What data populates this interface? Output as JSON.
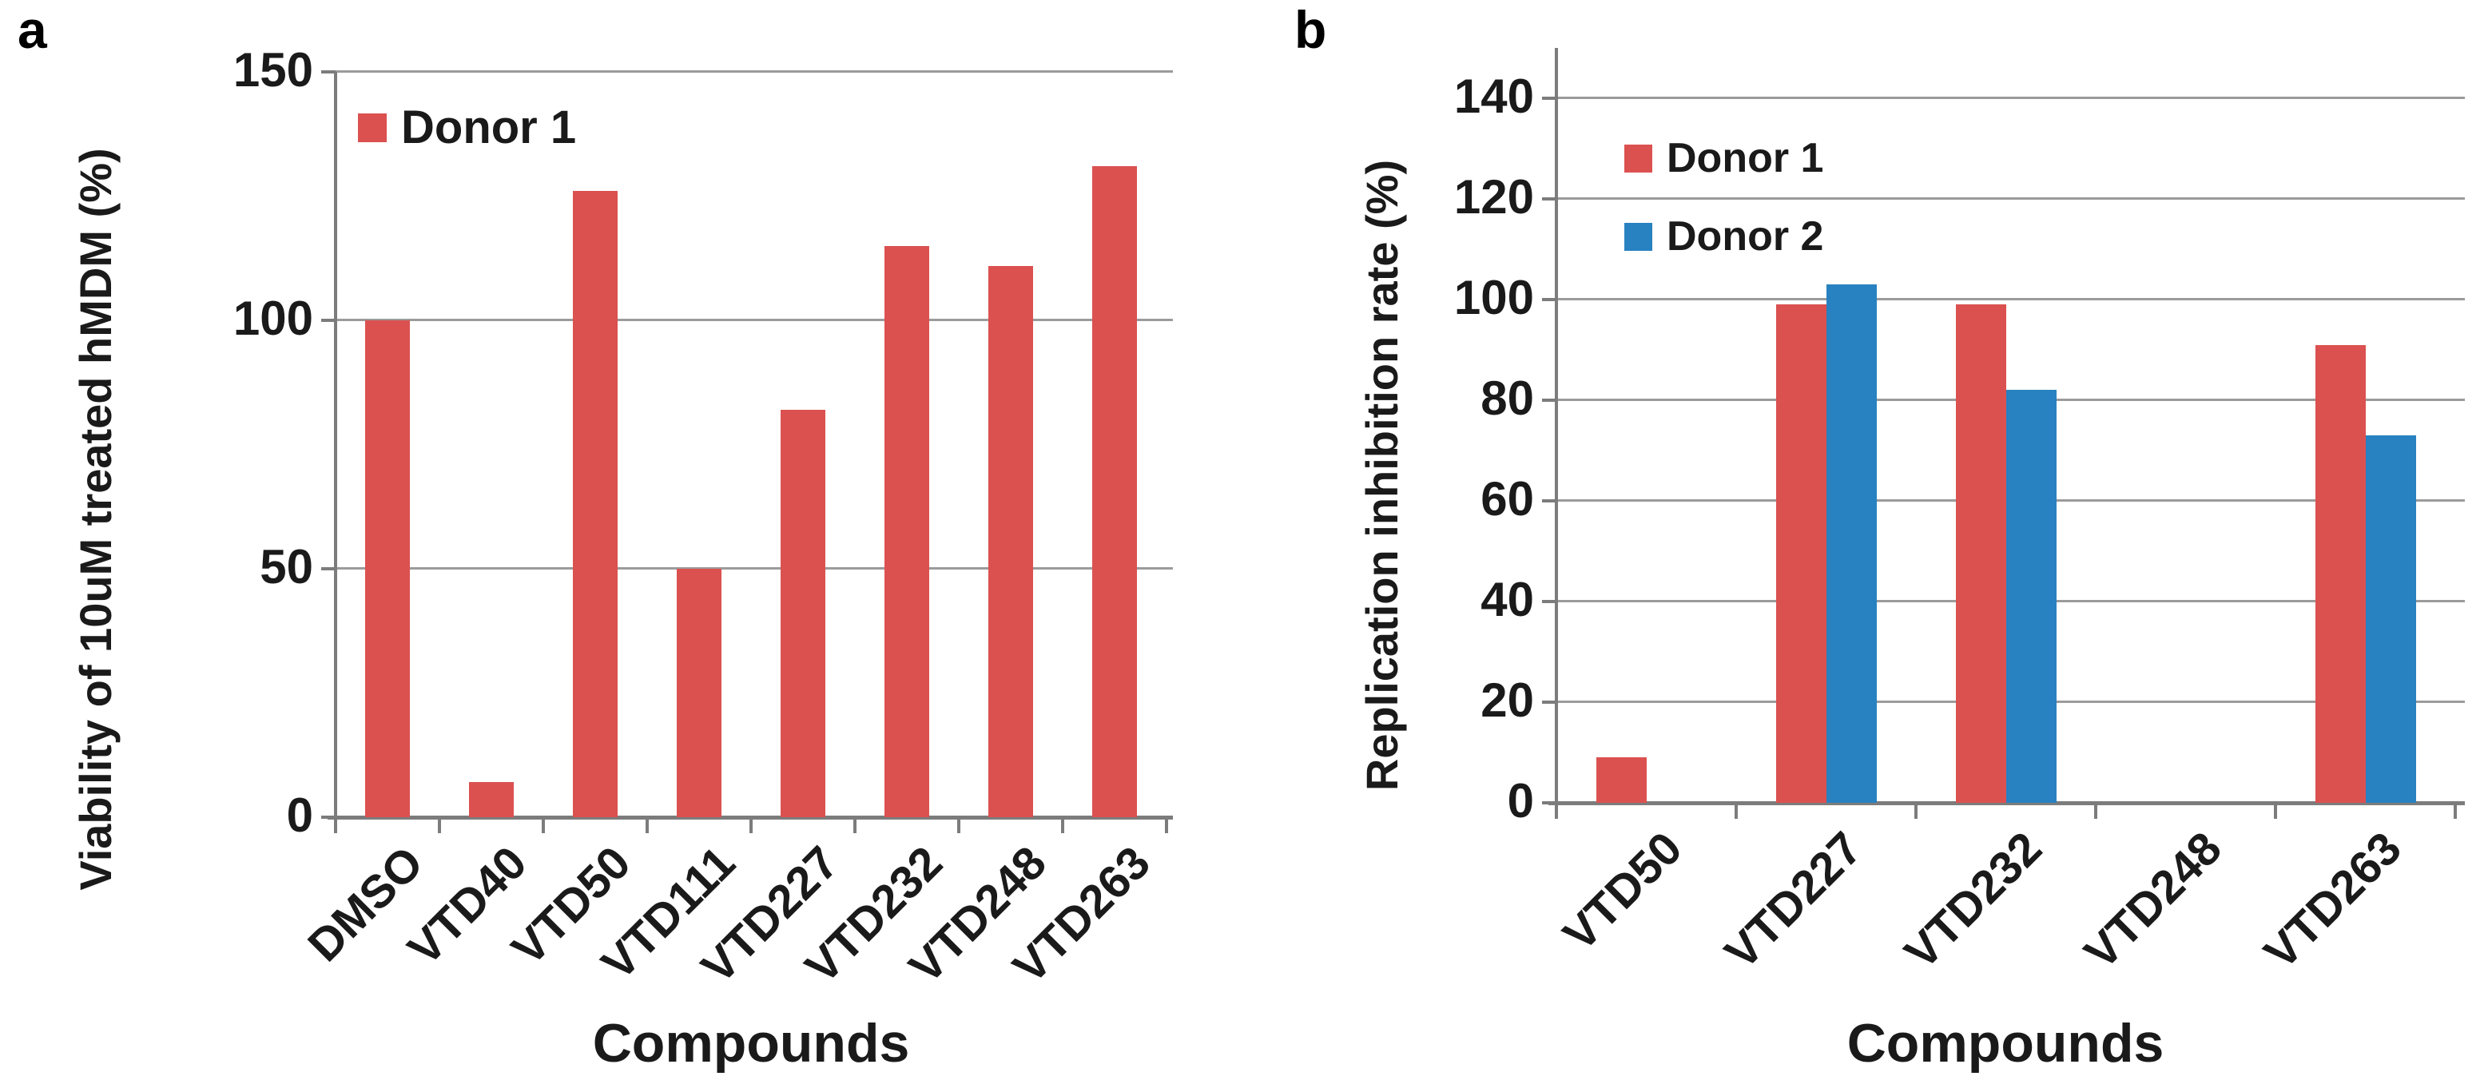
{
  "figure": {
    "background": "#ffffff",
    "panel_letters": [
      "a",
      "b"
    ]
  },
  "colors": {
    "donor1": "#DB5150",
    "donor2": "#2881C0",
    "gridline": "#9B9B9B",
    "axis": "#7C7C7C",
    "text": "#1A1A1A"
  },
  "chart_data": [
    {
      "type": "bar",
      "panel_letter": "a",
      "title": "",
      "categories": [
        "DMSO",
        "VTD40",
        "VTD50",
        "VTD111",
        "VTD227",
        "VTD232",
        "VTD248",
        "VTD263"
      ],
      "series": [
        {
          "name": "Donor 1",
          "color": "#DB5150",
          "values": [
            100,
            7,
            126,
            50,
            82,
            115,
            111,
            131
          ]
        }
      ],
      "xlabel": "Compounds",
      "ylabel": "Viability of 10uM treated hMDM (%)",
      "ylim": [
        0,
        150
      ],
      "yticks": [
        0,
        50,
        100,
        150
      ],
      "grid": true,
      "legend_position": "top-left-inside"
    },
    {
      "type": "bar",
      "panel_letter": "b",
      "title": "",
      "categories": [
        "VTD50",
        "VTD227",
        "VTD232",
        "VTD248",
        "VTD263"
      ],
      "series": [
        {
          "name": "Donor 1",
          "color": "#DB5150",
          "values": [
            9,
            99,
            99,
            0,
            91
          ]
        },
        {
          "name": "Donor 2",
          "color": "#2881C0",
          "values": [
            0,
            103,
            82,
            0,
            73
          ]
        }
      ],
      "xlabel": "Compounds",
      "ylabel": "Replication inhibition rate (%)",
      "ylim": [
        0,
        150
      ],
      "yticks": [
        0,
        20,
        40,
        60,
        80,
        100,
        120,
        140
      ],
      "grid": true,
      "legend_position": "top-left-inside"
    }
  ]
}
